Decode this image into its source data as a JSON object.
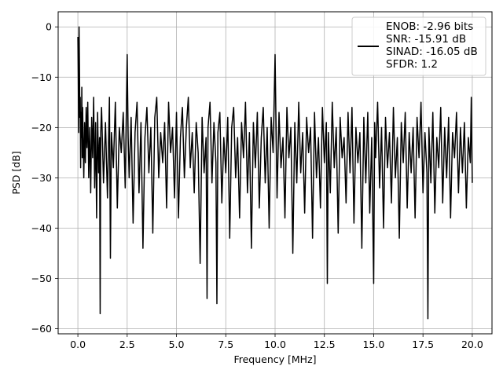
{
  "chart_data": {
    "type": "line",
    "title": "",
    "xlabel": "Frequency [MHz]",
    "ylabel": "PSD [dB]",
    "xlim": [
      -1.0,
      21.0
    ],
    "ylim": [
      -61.0,
      3.0
    ],
    "xticks": [
      0.0,
      2.5,
      5.0,
      7.5,
      10.0,
      12.5,
      15.0,
      17.5,
      20.0
    ],
    "xtick_labels": [
      "0.0",
      "2.5",
      "5.0",
      "7.5",
      "10.0",
      "12.5",
      "15.0",
      "17.5",
      "20.0"
    ],
    "yticks": [
      0,
      -10,
      -20,
      -30,
      -40,
      -50,
      -60
    ],
    "ytick_labels": [
      "0",
      "−10",
      "−20",
      "−30",
      "−40",
      "−50",
      "−60"
    ],
    "grid": true,
    "legend_position": "top-right",
    "legend_entries": [
      "ENOB: -2.96 bits",
      "SNR: -15.91 dB",
      "SINAD: -16.05 dB",
      "SFDR: 1.2"
    ],
    "series": [
      {
        "color": "#000000",
        "points": [
          [
            0.0,
            -2
          ],
          [
            0.02,
            -10
          ],
          [
            0.04,
            -21
          ],
          [
            0.06,
            0
          ],
          [
            0.08,
            -8
          ],
          [
            0.1,
            -18
          ],
          [
            0.12,
            -14
          ],
          [
            0.14,
            -28
          ],
          [
            0.16,
            -17
          ],
          [
            0.18,
            -22
          ],
          [
            0.2,
            -12
          ],
          [
            0.22,
            -26
          ],
          [
            0.24,
            -16
          ],
          [
            0.26,
            -21
          ],
          [
            0.3,
            -30
          ],
          [
            0.34,
            -19
          ],
          [
            0.38,
            -27
          ],
          [
            0.42,
            -16
          ],
          [
            0.46,
            -24
          ],
          [
            0.5,
            -15
          ],
          [
            0.55,
            -30
          ],
          [
            0.6,
            -20
          ],
          [
            0.65,
            -33
          ],
          [
            0.7,
            -18
          ],
          [
            0.75,
            -26
          ],
          [
            0.8,
            -14
          ],
          [
            0.85,
            -32
          ],
          [
            0.9,
            -19
          ],
          [
            0.95,
            -38
          ],
          [
            1.0,
            -17
          ],
          [
            1.05,
            -29
          ],
          [
            1.1,
            -22
          ],
          [
            1.13,
            -57
          ],
          [
            1.16,
            -21
          ],
          [
            1.2,
            -16
          ],
          [
            1.3,
            -31
          ],
          [
            1.4,
            -19
          ],
          [
            1.5,
            -34
          ],
          [
            1.6,
            -14
          ],
          [
            1.65,
            -46
          ],
          [
            1.7,
            -21
          ],
          [
            1.8,
            -28
          ],
          [
            1.9,
            -15
          ],
          [
            2.0,
            -36
          ],
          [
            2.1,
            -20
          ],
          [
            2.2,
            -25
          ],
          [
            2.3,
            -17
          ],
          [
            2.4,
            -32
          ],
          [
            2.5,
            -5.5
          ],
          [
            2.55,
            -22
          ],
          [
            2.6,
            -30
          ],
          [
            2.7,
            -18
          ],
          [
            2.8,
            -39
          ],
          [
            2.9,
            -21
          ],
          [
            3.0,
            -15
          ],
          [
            3.1,
            -33
          ],
          [
            3.2,
            -19
          ],
          [
            3.3,
            -44
          ],
          [
            3.4,
            -22
          ],
          [
            3.5,
            -16
          ],
          [
            3.6,
            -29
          ],
          [
            3.7,
            -20
          ],
          [
            3.8,
            -41
          ],
          [
            3.9,
            -18
          ],
          [
            4.0,
            -14
          ],
          [
            4.1,
            -30
          ],
          [
            4.2,
            -21
          ],
          [
            4.3,
            -27
          ],
          [
            4.4,
            -19
          ],
          [
            4.5,
            -36
          ],
          [
            4.6,
            -15
          ],
          [
            4.7,
            -25
          ],
          [
            4.8,
            -20
          ],
          [
            4.9,
            -34
          ],
          [
            5.0,
            -17
          ],
          [
            5.1,
            -38
          ],
          [
            5.2,
            -22
          ],
          [
            5.3,
            -16
          ],
          [
            5.4,
            -30
          ],
          [
            5.5,
            -20
          ],
          [
            5.6,
            -14
          ],
          [
            5.7,
            -28
          ],
          [
            5.8,
            -21
          ],
          [
            5.9,
            -33
          ],
          [
            6.0,
            -19
          ],
          [
            6.1,
            -25
          ],
          [
            6.2,
            -47
          ],
          [
            6.3,
            -18
          ],
          [
            6.4,
            -29
          ],
          [
            6.5,
            -22
          ],
          [
            6.55,
            -54
          ],
          [
            6.6,
            -20
          ],
          [
            6.7,
            -15
          ],
          [
            6.8,
            -31
          ],
          [
            6.9,
            -19
          ],
          [
            7.0,
            -27
          ],
          [
            7.05,
            -55
          ],
          [
            7.1,
            -21
          ],
          [
            7.2,
            -17
          ],
          [
            7.3,
            -35
          ],
          [
            7.4,
            -22
          ],
          [
            7.5,
            -29
          ],
          [
            7.6,
            -18
          ],
          [
            7.7,
            -42
          ],
          [
            7.8,
            -20
          ],
          [
            7.9,
            -16
          ],
          [
            8.0,
            -30
          ],
          [
            8.1,
            -22
          ],
          [
            8.2,
            -38
          ],
          [
            8.3,
            -19
          ],
          [
            8.4,
            -26
          ],
          [
            8.5,
            -15
          ],
          [
            8.6,
            -33
          ],
          [
            8.7,
            -21
          ],
          [
            8.8,
            -44
          ],
          [
            8.9,
            -19
          ],
          [
            9.0,
            -28
          ],
          [
            9.1,
            -17
          ],
          [
            9.2,
            -36
          ],
          [
            9.3,
            -22
          ],
          [
            9.4,
            -16
          ],
          [
            9.5,
            -31
          ],
          [
            9.6,
            -20
          ],
          [
            9.7,
            -40
          ],
          [
            9.8,
            -18
          ],
          [
            9.9,
            -25
          ],
          [
            10.0,
            -5.5
          ],
          [
            10.05,
            -20
          ],
          [
            10.1,
            -34
          ],
          [
            10.2,
            -17
          ],
          [
            10.3,
            -28
          ],
          [
            10.4,
            -22
          ],
          [
            10.5,
            -38
          ],
          [
            10.6,
            -16
          ],
          [
            10.7,
            -26
          ],
          [
            10.8,
            -20
          ],
          [
            10.9,
            -45
          ],
          [
            11.0,
            -19
          ],
          [
            11.1,
            -31
          ],
          [
            11.2,
            -15
          ],
          [
            11.3,
            -29
          ],
          [
            11.4,
            -21
          ],
          [
            11.5,
            -37
          ],
          [
            11.6,
            -18
          ],
          [
            11.7,
            -25
          ],
          [
            11.8,
            -20
          ],
          [
            11.9,
            -42
          ],
          [
            12.0,
            -17
          ],
          [
            12.1,
            -30
          ],
          [
            12.2,
            -22
          ],
          [
            12.3,
            -36
          ],
          [
            12.4,
            -16
          ],
          [
            12.5,
            -27
          ],
          [
            12.6,
            -19
          ],
          [
            12.65,
            -51
          ],
          [
            12.7,
            -21
          ],
          [
            12.8,
            -33
          ],
          [
            12.9,
            -15
          ],
          [
            13.0,
            -28
          ],
          [
            13.1,
            -20
          ],
          [
            13.2,
            -41
          ],
          [
            13.3,
            -18
          ],
          [
            13.4,
            -26
          ],
          [
            13.5,
            -22
          ],
          [
            13.6,
            -35
          ],
          [
            13.7,
            -17
          ],
          [
            13.8,
            -29
          ],
          [
            13.9,
            -16
          ],
          [
            14.0,
            -39
          ],
          [
            14.1,
            -20
          ],
          [
            14.2,
            -27
          ],
          [
            14.3,
            -21
          ],
          [
            14.4,
            -44
          ],
          [
            14.5,
            -18
          ],
          [
            14.6,
            -31
          ],
          [
            14.7,
            -17
          ],
          [
            14.8,
            -37
          ],
          [
            14.9,
            -22
          ],
          [
            15.0,
            -51
          ],
          [
            15.05,
            -19
          ],
          [
            15.1,
            -26
          ],
          [
            15.2,
            -15
          ],
          [
            15.3,
            -32
          ],
          [
            15.4,
            -20
          ],
          [
            15.5,
            -40
          ],
          [
            15.6,
            -18
          ],
          [
            15.7,
            -28
          ],
          [
            15.8,
            -21
          ],
          [
            15.9,
            -35
          ],
          [
            16.0,
            -16
          ],
          [
            16.1,
            -30
          ],
          [
            16.2,
            -22
          ],
          [
            16.3,
            -42
          ],
          [
            16.4,
            -19
          ],
          [
            16.5,
            -27
          ],
          [
            16.6,
            -17
          ],
          [
            16.7,
            -36
          ],
          [
            16.8,
            -21
          ],
          [
            16.9,
            -29
          ],
          [
            17.0,
            -20
          ],
          [
            17.1,
            -38
          ],
          [
            17.2,
            -18
          ],
          [
            17.3,
            -26
          ],
          [
            17.4,
            -15
          ],
          [
            17.5,
            -33
          ],
          [
            17.6,
            -21
          ],
          [
            17.7,
            -29
          ],
          [
            17.75,
            -58
          ],
          [
            17.8,
            -20
          ],
          [
            17.9,
            -31
          ],
          [
            18.0,
            -17
          ],
          [
            18.1,
            -37
          ],
          [
            18.2,
            -22
          ],
          [
            18.3,
            -28
          ],
          [
            18.4,
            -16
          ],
          [
            18.5,
            -35
          ],
          [
            18.6,
            -20
          ],
          [
            18.7,
            -30
          ],
          [
            18.8,
            -18
          ],
          [
            18.9,
            -38
          ],
          [
            19.0,
            -21
          ],
          [
            19.1,
            -26
          ],
          [
            19.2,
            -17
          ],
          [
            19.3,
            -33
          ],
          [
            19.4,
            -20
          ],
          [
            19.5,
            -29
          ],
          [
            19.6,
            -19
          ],
          [
            19.7,
            -36
          ],
          [
            19.8,
            -22
          ],
          [
            19.9,
            -27
          ],
          [
            19.95,
            -14
          ],
          [
            20.0,
            -31
          ]
        ]
      }
    ]
  }
}
